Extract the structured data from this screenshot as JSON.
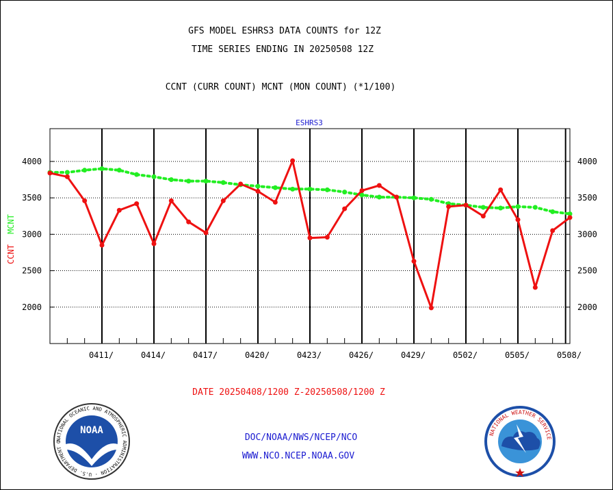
{
  "header": {
    "title_line1": "GFS MODEL ESHRS3 DATA COUNTS for 12Z",
    "title_line2": "TIME SERIES ENDING IN 20250508 12Z",
    "subtitle": "CCNT (CURR COUNT) MCNT (MON COUNT) (*1/100)",
    "panel_label": "ESHRS3"
  },
  "footer": {
    "date_range": "DATE 20250408/1200 Z-20250508/1200 Z",
    "org_line": "DOC/NOAA/NWS/NCEP/NCO",
    "url_line": "WWW.NCO.NCEP.NOAA.GOV",
    "noaa_logo_text": "NOAA",
    "noaa_ring_text": "NATIONAL OCEANIC AND ATMOSPHERIC ADMINISTRATION · U.S. DEPARTMENT OF COMMERCE ·",
    "nws_ring_text": "NATIONAL WEATHER SERVICE"
  },
  "colors": {
    "ccnt": "#ee1111",
    "mcnt": "#22ee22",
    "title_blue": "#1a1ad0",
    "date_red": "#ee1111"
  },
  "chart_data": {
    "type": "line",
    "ylabel_ccnt": "CCNT",
    "ylabel_mcnt": "MCNT",
    "ylim": [
      1500,
      4450
    ],
    "yticks": [
      2000,
      2500,
      3000,
      3500,
      4000
    ],
    "grid": true,
    "x_day_range": [
      0,
      30
    ],
    "xtick_labels": [
      "0411/",
      "0414/",
      "0417/",
      "0420/",
      "0423/",
      "0426/",
      "0429/",
      "0502/",
      "0505/",
      "0508/"
    ],
    "series": [
      {
        "name": "CCNT",
        "color": "#ee1111",
        "values": [
          3840,
          3790,
          3460,
          2850,
          3330,
          3420,
          2870,
          3460,
          3170,
          3020,
          3460,
          3690,
          3590,
          3440,
          4010,
          2950,
          2960,
          3350,
          3600,
          3670,
          3510,
          2630,
          1990,
          3380,
          3400,
          3250,
          3610,
          3200,
          2270,
          3050,
          3230
        ]
      },
      {
        "name": "MCNT",
        "color": "#22ee22",
        "values": [
          3850,
          3850,
          3880,
          3900,
          3880,
          3820,
          3790,
          3750,
          3730,
          3730,
          3710,
          3680,
          3660,
          3640,
          3620,
          3620,
          3610,
          3580,
          3540,
          3510,
          3510,
          3500,
          3480,
          3420,
          3400,
          3370,
          3360,
          3380,
          3370,
          3310,
          3280
        ]
      }
    ]
  }
}
